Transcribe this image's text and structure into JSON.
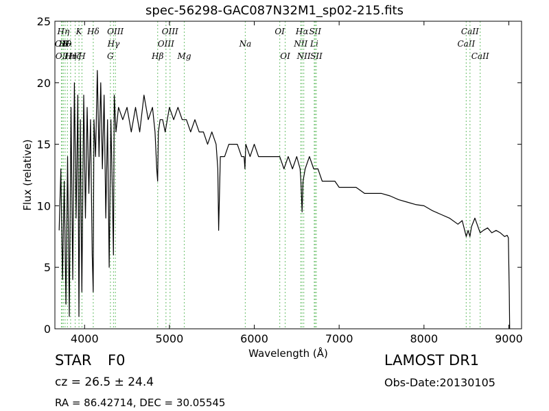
{
  "title": "spec-56298-GAC087N32M1_sp02-215.fits",
  "info": {
    "class_label": "STAR",
    "subclass": "F0",
    "cz_text": "cz = 26.5  ± 24.4",
    "radec_text": "RA = 86.42714, DEC = 30.05545",
    "survey": "LAMOST DR1",
    "obs_date": "Obs-Date:20130105"
  },
  "chart_data": {
    "type": "line",
    "xlabel": "Wavelength (Å)",
    "ylabel": "Flux (relative)",
    "xlim": [
      3650,
      9150
    ],
    "ylim": [
      0,
      25
    ],
    "xticks": [
      4000,
      5000,
      6000,
      7000,
      8000,
      9000
    ],
    "yticks": [
      0,
      5,
      10,
      15,
      20,
      25
    ],
    "grid": false,
    "line_color": "#000000",
    "marker_color": "#7ec87e",
    "spectrum": {
      "x": [
        3700,
        3720,
        3740,
        3760,
        3780,
        3800,
        3820,
        3840,
        3860,
        3880,
        3900,
        3920,
        3933,
        3950,
        3968,
        3990,
        4010,
        4030,
        4050,
        4070,
        4090,
        4101,
        4110,
        4130,
        4150,
        4170,
        4190,
        4210,
        4230,
        4250,
        4270,
        4290,
        4310,
        4330,
        4340,
        4350,
        4370,
        4400,
        4450,
        4500,
        4550,
        4600,
        4650,
        4700,
        4750,
        4800,
        4830,
        4850,
        4861,
        4870,
        4890,
        4920,
        4950,
        5000,
        5050,
        5100,
        5150,
        5200,
        5250,
        5300,
        5350,
        5400,
        5450,
        5500,
        5550,
        5570,
        5580,
        5600,
        5650,
        5700,
        5750,
        5800,
        5850,
        5880,
        5890,
        5900,
        5950,
        6000,
        6050,
        6100,
        6150,
        6200,
        6250,
        6300,
        6350,
        6400,
        6450,
        6500,
        6540,
        6550,
        6563,
        6575,
        6600,
        6650,
        6700,
        6750,
        6800,
        6850,
        6900,
        6950,
        7000,
        7100,
        7200,
        7300,
        7400,
        7500,
        7600,
        7700,
        7800,
        7900,
        8000,
        8100,
        8200,
        8300,
        8400,
        8450,
        8498,
        8520,
        8542,
        8560,
        8600,
        8662,
        8700,
        8750,
        8800,
        8850,
        8900,
        8950,
        8980,
        8995,
        9005,
        9010
      ],
      "y": [
        8,
        13,
        4,
        12,
        2,
        14,
        1,
        18,
        4,
        20,
        9,
        19,
        1,
        17,
        3,
        19,
        9,
        18,
        11,
        17,
        6,
        3,
        17,
        14,
        21,
        14,
        20,
        13,
        19,
        9,
        17,
        5,
        17,
        10,
        6,
        19,
        16,
        18,
        17,
        18,
        16,
        18,
        16,
        19,
        17,
        18,
        16,
        13,
        12,
        16,
        17,
        17,
        16,
        18,
        17,
        18,
        17,
        17,
        16,
        17,
        16,
        16,
        15,
        16,
        15,
        13,
        8,
        14,
        14,
        15,
        15,
        15,
        14,
        14,
        13,
        15,
        14,
        15,
        14,
        14,
        14,
        14,
        14,
        14,
        13,
        14,
        13,
        14,
        13,
        12,
        9.5,
        12,
        13,
        14,
        13,
        13,
        12,
        12,
        12,
        12,
        11.5,
        11.5,
        11.5,
        11,
        11,
        11,
        10.8,
        10.5,
        10.3,
        10.1,
        10,
        9.6,
        9.3,
        9,
        8.5,
        8.8,
        7.5,
        8,
        7.5,
        8.3,
        9,
        7.8,
        8,
        8.2,
        7.8,
        8,
        7.8,
        7.5,
        7.6,
        7.4,
        3,
        0
      ]
    },
    "line_markers": [
      {
        "wavelength": 3727,
        "label": "OII",
        "row": 1
      },
      {
        "wavelength": 3734,
        "label": "OII",
        "row": 2
      },
      {
        "wavelength": 3750,
        "label": "Hη",
        "row": 0
      },
      {
        "wavelength": 3770,
        "label": "Hθ",
        "row": 1
      },
      {
        "wavelength": 3798,
        "label": "Hι",
        "row": 1
      },
      {
        "wavelength": 3835,
        "label": "Hη",
        "row": 2
      },
      {
        "wavelength": 3889,
        "label": "Hζ",
        "row": 2
      },
      {
        "wavelength": 3934,
        "label": "K",
        "row": 0
      },
      {
        "wavelength": 3969,
        "label": "H",
        "row": 2
      },
      {
        "wavelength": 4102,
        "label": "Hδ",
        "row": 0
      },
      {
        "wavelength": 4304,
        "label": "G",
        "row": 2
      },
      {
        "wavelength": 4341,
        "label": "Hγ",
        "row": 1
      },
      {
        "wavelength": 4363,
        "label": "OIII",
        "row": 0
      },
      {
        "wavelength": 4861,
        "label": "Hβ",
        "row": 2
      },
      {
        "wavelength": 4959,
        "label": "OIII",
        "row": 1
      },
      {
        "wavelength": 5007,
        "label": "OIII",
        "row": 0
      },
      {
        "wavelength": 5175,
        "label": "Mg",
        "row": 2
      },
      {
        "wavelength": 5894,
        "label": "Na",
        "row": 1
      },
      {
        "wavelength": 6300,
        "label": "OI",
        "row": 0
      },
      {
        "wavelength": 6364,
        "label": "OI",
        "row": 2
      },
      {
        "wavelength": 6548,
        "label": "NII",
        "row": 1
      },
      {
        "wavelength": 6563,
        "label": "Hα",
        "row": 0
      },
      {
        "wavelength": 6583,
        "label": "NII",
        "row": 2
      },
      {
        "wavelength": 6707,
        "label": "Li",
        "row": 1
      },
      {
        "wavelength": 6717,
        "label": "SII",
        "row": 0
      },
      {
        "wavelength": 6731,
        "label": "SII",
        "row": 2
      },
      {
        "wavelength": 8498,
        "label": "CaII",
        "row": 1
      },
      {
        "wavelength": 8542,
        "label": "CaII",
        "row": 0
      },
      {
        "wavelength": 8662,
        "label": "CaII",
        "row": 2
      }
    ]
  }
}
